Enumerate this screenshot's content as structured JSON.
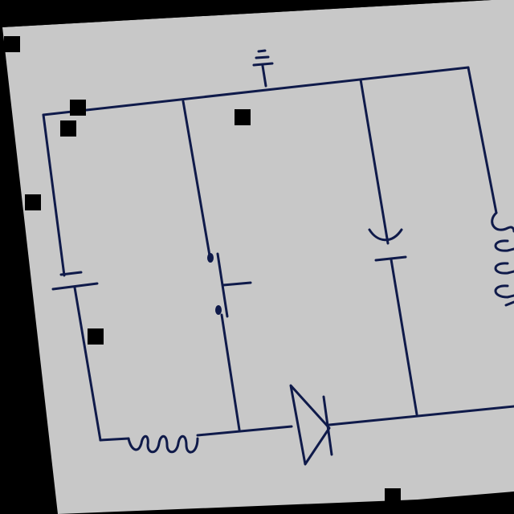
{
  "scene": {
    "background_color": "#000000",
    "paper_color": "#c8c8c8",
    "ink_color": "#0f1a4a",
    "marker_color": "#000000"
  },
  "circuit": {
    "components": [
      {
        "type": "ground",
        "icon": "ground-icon"
      },
      {
        "type": "battery",
        "icon": "battery-icon"
      },
      {
        "type": "push-switch",
        "icon": "switch-icon"
      },
      {
        "type": "capacitor-polarized",
        "icon": "capacitor-icon"
      },
      {
        "type": "inductor",
        "icon": "inductor-icon"
      },
      {
        "type": "inductor",
        "icon": "inductor-icon"
      },
      {
        "type": "diode",
        "icon": "diode-icon"
      }
    ]
  }
}
